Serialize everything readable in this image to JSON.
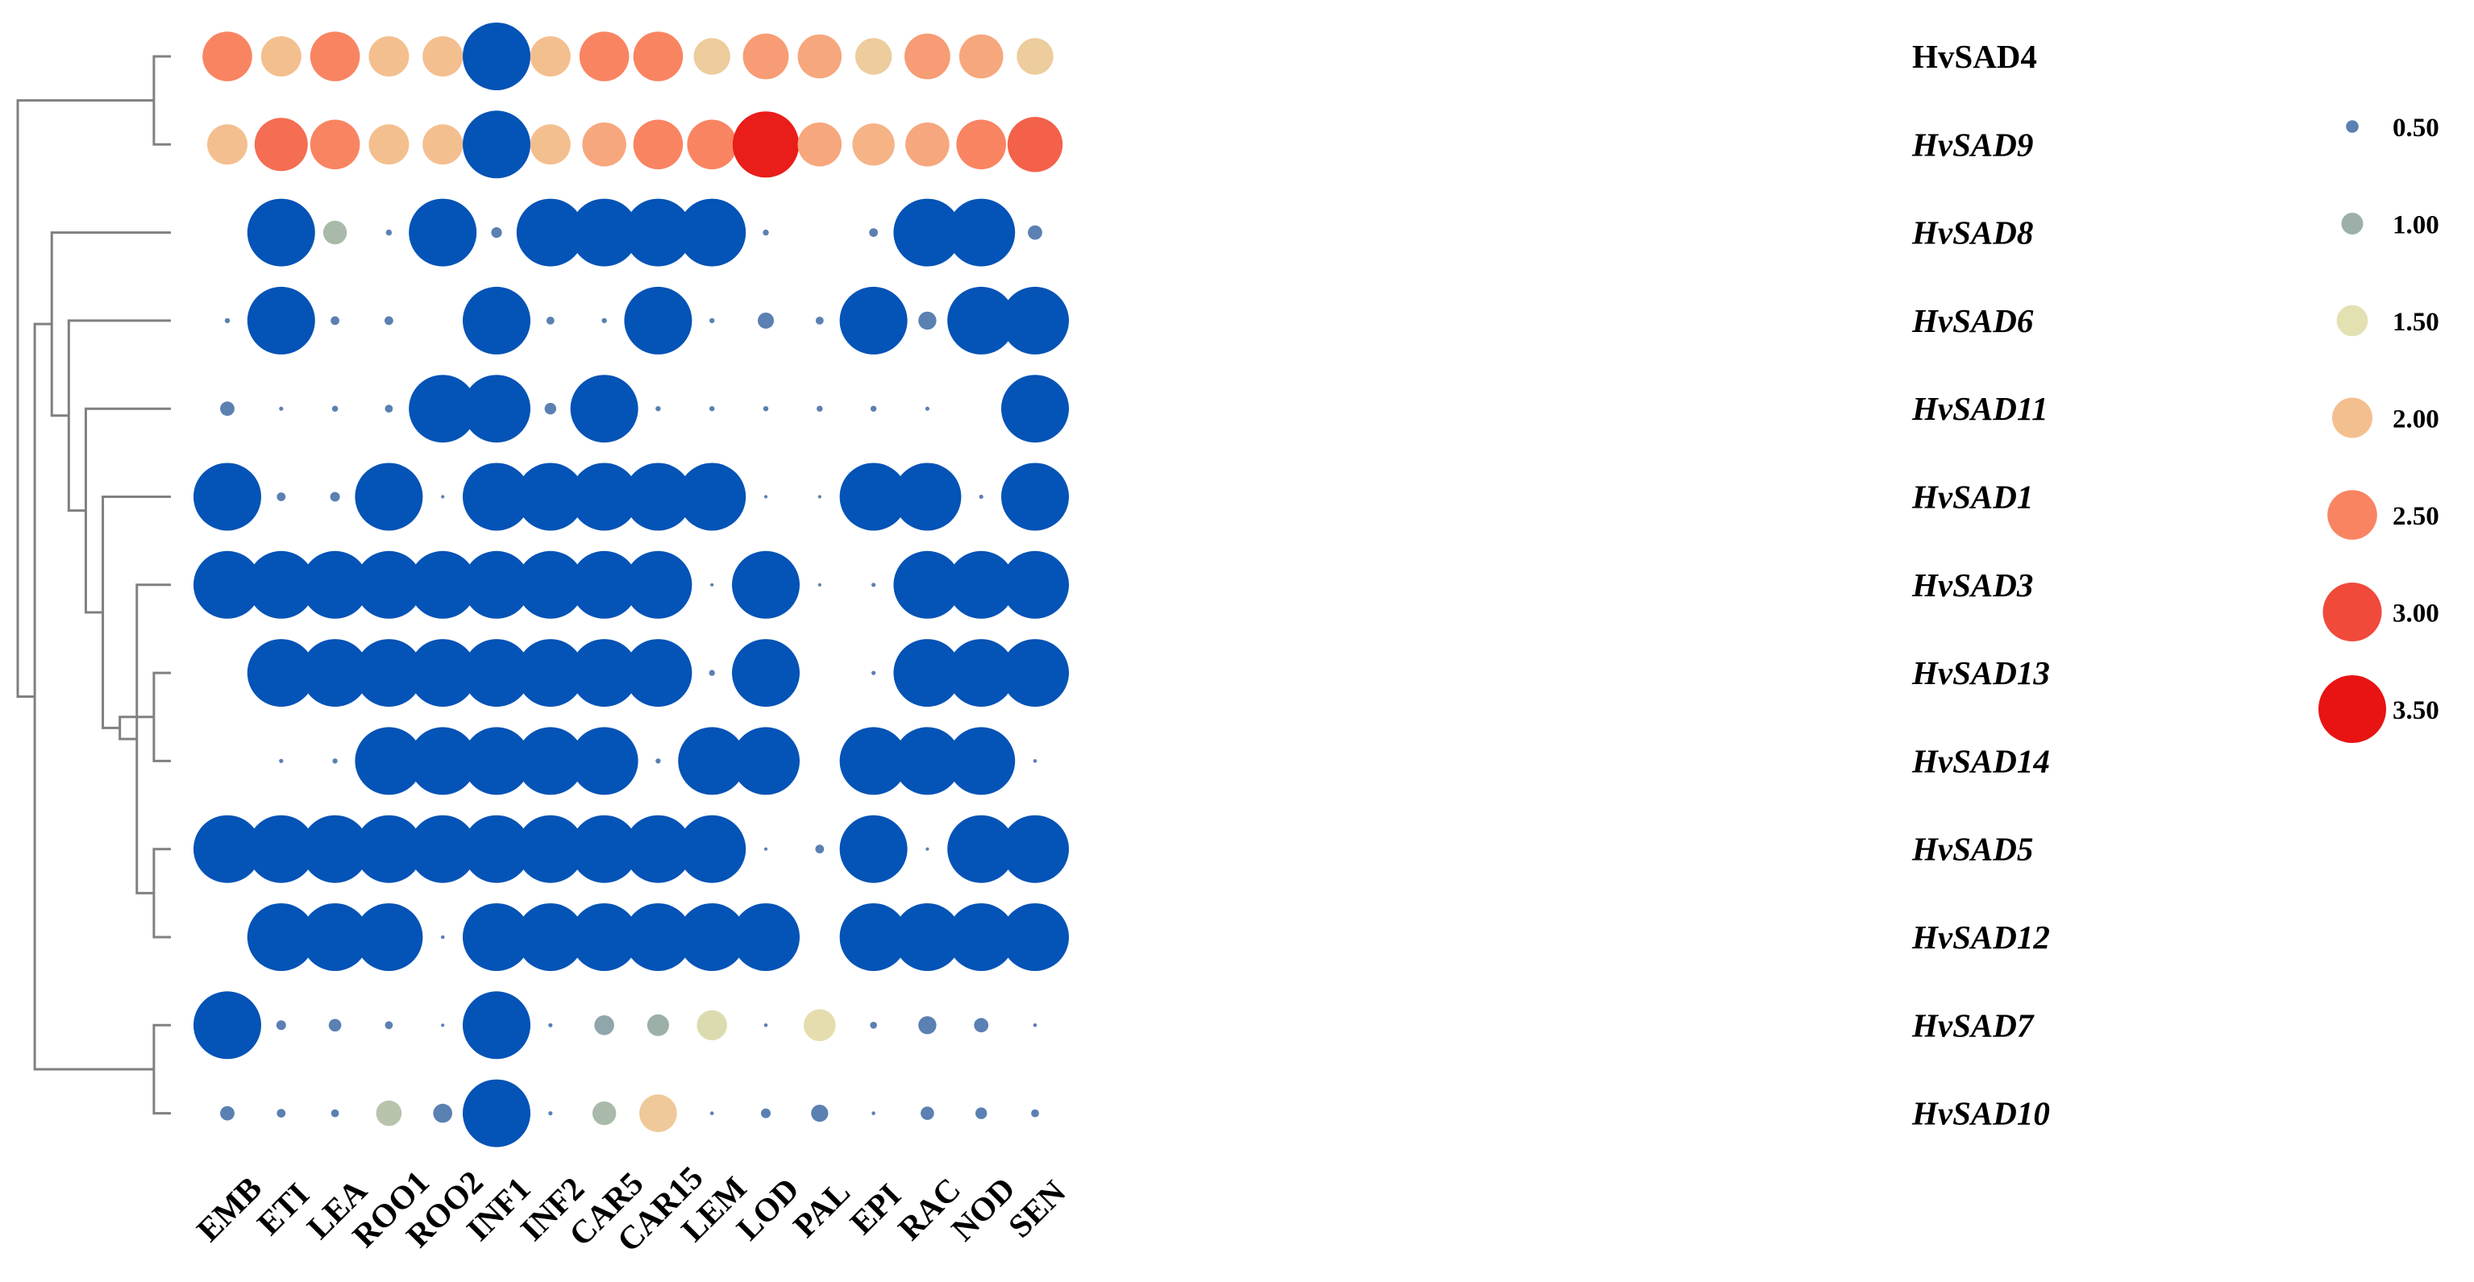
{
  "chart_data": {
    "type": "bubble-heatmap",
    "columns": [
      "EMB",
      "ETI",
      "LEA",
      "ROO1",
      "ROO2",
      "INF1",
      "INF2",
      "CAR5",
      "CAR15",
      "LEM",
      "LOD",
      "PAL",
      "EPI",
      "RAC",
      "NOD",
      "SEN"
    ],
    "rows": [
      {
        "gene": "HvSAD4",
        "italic": false,
        "values": [
          2.5,
          2.0,
          2.5,
          2.0,
          2.0,
          4.0,
          2.0,
          2.5,
          2.5,
          1.8,
          2.3,
          2.2,
          1.8,
          2.3,
          2.2,
          1.8
        ]
      },
      {
        "gene": "HvSAD9",
        "italic": true,
        "values": [
          2.0,
          2.7,
          2.5,
          2.0,
          2.0,
          4.0,
          2.0,
          2.2,
          2.5,
          2.5,
          3.4,
          2.2,
          2.1,
          2.2,
          2.5,
          2.8
        ]
      },
      {
        "gene": "HvSAD8",
        "italic": true,
        "values": [
          0.0,
          4.0,
          1.1,
          0.15,
          4.0,
          0.4,
          4.0,
          4.0,
          4.0,
          4.0,
          0.15,
          0.0,
          0.3,
          4.0,
          4.0,
          0.6
        ]
      },
      {
        "gene": "HvSAD6",
        "italic": true,
        "values": [
          0.1,
          4.0,
          0.3,
          0.3,
          0.0,
          4.0,
          0.25,
          0.1,
          4.0,
          0.1,
          0.7,
          0.25,
          4.0,
          0.8,
          4.0,
          4.0
        ]
      },
      {
        "gene": "HvSAD11",
        "italic": true,
        "values": [
          0.6,
          0.05,
          0.15,
          0.25,
          4.0,
          4.0,
          0.45,
          4.0,
          0.1,
          0.1,
          0.1,
          0.15,
          0.15,
          0.05,
          0.0,
          4.0
        ]
      },
      {
        "gene": "HvSAD1",
        "italic": true,
        "values": [
          4.0,
          0.3,
          0.35,
          4.0,
          0.01,
          4.0,
          4.0,
          4.0,
          4.0,
          4.0,
          0.01,
          0.01,
          4.0,
          4.0,
          0.05,
          4.0
        ]
      },
      {
        "gene": "HvSAD3",
        "italic": true,
        "values": [
          4.0,
          4.0,
          4.0,
          4.0,
          4.0,
          4.0,
          4.0,
          4.0,
          4.0,
          0.01,
          4.0,
          0.01,
          0.05,
          4.0,
          4.0,
          4.0
        ]
      },
      {
        "gene": "HvSAD13",
        "italic": true,
        "values": [
          0.0,
          4.0,
          4.0,
          4.0,
          4.0,
          4.0,
          4.0,
          4.0,
          4.0,
          0.15,
          4.0,
          0.0,
          0.05,
          4.0,
          4.0,
          4.0
        ]
      },
      {
        "gene": "HvSAD14",
        "italic": true,
        "values": [
          0.0,
          0.05,
          0.1,
          4.0,
          4.0,
          4.0,
          4.0,
          4.0,
          0.1,
          4.0,
          4.0,
          0.0,
          4.0,
          4.0,
          4.0,
          0.03
        ]
      },
      {
        "gene": "HvSAD5",
        "italic": true,
        "values": [
          4.0,
          4.0,
          4.0,
          4.0,
          4.0,
          4.0,
          4.0,
          4.0,
          4.0,
          4.0,
          0.01,
          0.3,
          4.0,
          0.01,
          4.0,
          4.0
        ]
      },
      {
        "gene": "HvSAD12",
        "italic": true,
        "values": [
          0.0,
          4.0,
          4.0,
          4.0,
          0.03,
          4.0,
          4.0,
          4.0,
          4.0,
          4.0,
          4.0,
          0.0,
          4.0,
          4.0,
          4.0,
          4.0
        ]
      },
      {
        "gene": "HvSAD7",
        "italic": true,
        "values": [
          4.0,
          0.35,
          0.5,
          0.25,
          0.01,
          4.0,
          0.05,
          0.9,
          1.0,
          1.45,
          0.03,
          1.55,
          0.2,
          0.8,
          0.6,
          0.03
        ]
      },
      {
        "gene": "HvSAD10",
        "italic": true,
        "values": [
          0.6,
          0.3,
          0.25,
          1.2,
          0.85,
          4.0,
          0.05,
          1.1,
          1.85,
          0.03,
          0.35,
          0.75,
          0.03,
          0.55,
          0.45,
          0.25
        ]
      }
    ],
    "legend": [
      {
        "label": "0.50",
        "value": 0.5
      },
      {
        "label": "1.00",
        "value": 1.0
      },
      {
        "label": "1.50",
        "value": 1.5
      },
      {
        "label": "2.00",
        "value": 2.0
      },
      {
        "label": "2.50",
        "value": 2.5
      },
      {
        "label": "3.00",
        "value": 3.0
      },
      {
        "label": "3.50",
        "value": 3.5
      }
    ],
    "color_scale": [
      {
        "value": 0.5,
        "color": "#5b80b2"
      },
      {
        "value": 1.0,
        "color": "#9cb0a8"
      },
      {
        "value": 1.5,
        "color": "#e3e0b1"
      },
      {
        "value": 2.0,
        "color": "#f4bf8f"
      },
      {
        "value": 2.5,
        "color": "#f98462"
      },
      {
        "value": 3.0,
        "color": "#ef4a3a"
      },
      {
        "value": 3.5,
        "color": "#e81212"
      }
    ],
    "saturated_color": "#0453b6",
    "dendrogram": [
      [
        11,
        12
      ],
      [
        9,
        10
      ],
      [
        7,
        8
      ],
      [
        6,
        14
      ],
      [
        15,
        16
      ],
      [
        5,
        17
      ],
      [
        4,
        18
      ],
      [
        3,
        19
      ],
      [
        2,
        20
      ],
      [
        13,
        21
      ],
      [
        0,
        1
      ],
      [
        22,
        23
      ]
    ]
  }
}
